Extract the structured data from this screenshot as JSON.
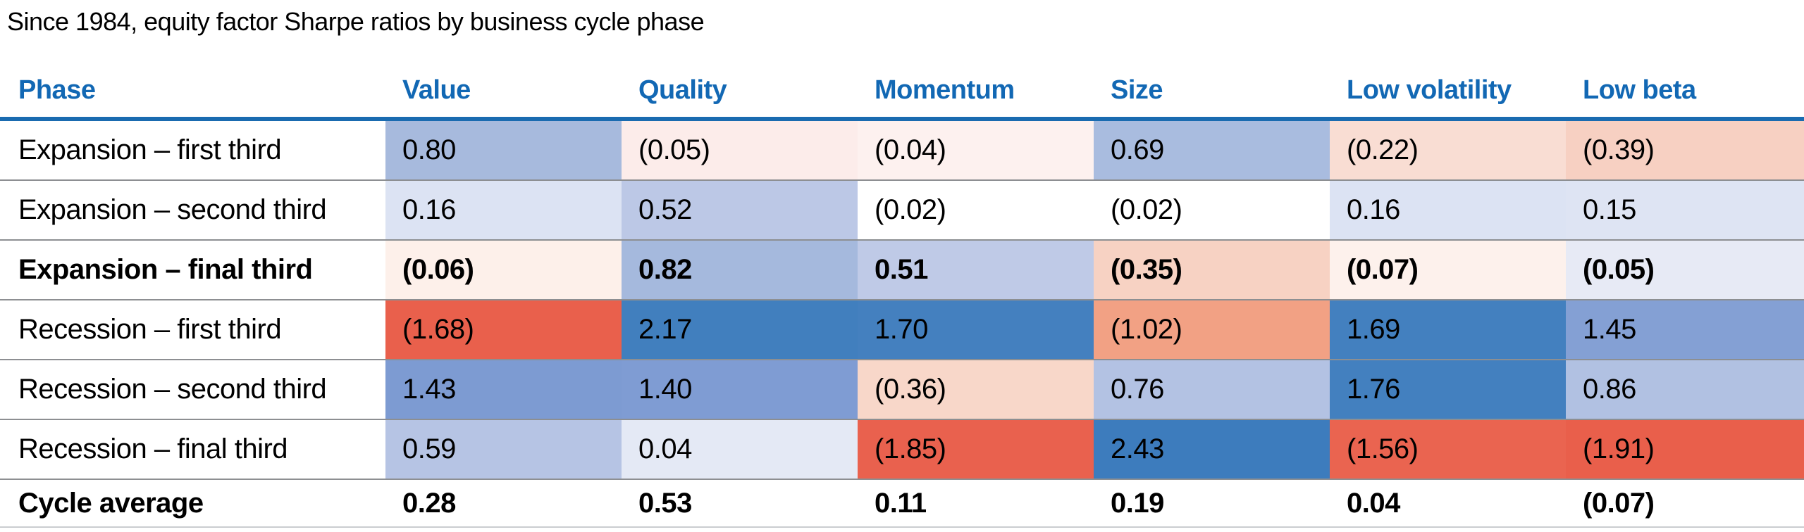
{
  "title": "Since 1984, equity factor Sharpe ratios by business cycle phase",
  "colors": {
    "header_text_blue": "#1268b4",
    "header_rule_blue": "#1a6bb0",
    "row_separator_gray": "#8d8f92",
    "bottom_border_gray": "#cbcdd0",
    "background": "#ffffff",
    "text": "#000000",
    "heatmap_strong_blue": "#3d7cbd",
    "heatmap_strong_red": "#e95f4b"
  },
  "table": {
    "columns": [
      "Phase",
      "Value",
      "Quality",
      "Momentum",
      "Size",
      "Low volatility",
      "Low beta"
    ],
    "rows": [
      {
        "phase": "Expansion – first third",
        "bold": false,
        "cells": [
          {
            "text": "0.80",
            "bg": "#a7badd"
          },
          {
            "text": "(0.05)",
            "bg": "#fcecea"
          },
          {
            "text": "(0.04)",
            "bg": "#fdf1ef"
          },
          {
            "text": "0.69",
            "bg": "#a9bcdf"
          },
          {
            "text": "(0.22)",
            "bg": "#f9ddd3"
          },
          {
            "text": "(0.39)",
            "bg": "#f7d0c2"
          }
        ]
      },
      {
        "phase": "Expansion – second third",
        "bold": false,
        "cells": [
          {
            "text": "0.16",
            "bg": "#dce3f3"
          },
          {
            "text": "0.52",
            "bg": "#bcc8e6"
          },
          {
            "text": "(0.02)",
            "bg": "#ffffff"
          },
          {
            "text": "(0.02)",
            "bg": "#ffffff"
          },
          {
            "text": "0.16",
            "bg": "#dce3f3"
          },
          {
            "text": "0.15",
            "bg": "#dee4f3"
          }
        ]
      },
      {
        "phase": "Expansion – final third",
        "bold": true,
        "cells": [
          {
            "text": "(0.06)",
            "bg": "#fdf0ea"
          },
          {
            "text": "0.82",
            "bg": "#a5b9dd"
          },
          {
            "text": "0.51",
            "bg": "#bfcae7"
          },
          {
            "text": "(0.35)",
            "bg": "#f7d2c3"
          },
          {
            "text": "(0.07)",
            "bg": "#fdf1ec"
          },
          {
            "text": "(0.05)",
            "bg": "#e7eaf5"
          }
        ]
      },
      {
        "phase": "Recession – first third",
        "bold": false,
        "cells": [
          {
            "text": "(1.68)",
            "bg": "#e9604c"
          },
          {
            "text": "2.17",
            "bg": "#417fbe"
          },
          {
            "text": "1.70",
            "bg": "#4480bf"
          },
          {
            "text": "(1.02)",
            "bg": "#f2a184"
          },
          {
            "text": "1.69",
            "bg": "#4380bf"
          },
          {
            "text": "1.45",
            "bg": "#84a0d4"
          }
        ]
      },
      {
        "phase": "Recession – second third",
        "bold": false,
        "cells": [
          {
            "text": "1.43",
            "bg": "#7d9bd2"
          },
          {
            "text": "1.40",
            "bg": "#7f9cd3"
          },
          {
            "text": "(0.36)",
            "bg": "#f8d7c9"
          },
          {
            "text": "0.76",
            "bg": "#b3c2e3"
          },
          {
            "text": "1.76",
            "bg": "#4380bf"
          },
          {
            "text": "0.86",
            "bg": "#b1c1e2"
          }
        ]
      },
      {
        "phase": "Recession – final third",
        "bold": false,
        "cells": [
          {
            "text": "0.59",
            "bg": "#b6c4e4"
          },
          {
            "text": "0.04",
            "bg": "#e4e9f5"
          },
          {
            "text": "(1.85)",
            "bg": "#e9614e"
          },
          {
            "text": "2.43",
            "bg": "#3d7cbd"
          },
          {
            "text": "(1.56)",
            "bg": "#ea6450"
          },
          {
            "text": "(1.91)",
            "bg": "#e95f4b"
          }
        ]
      },
      {
        "phase": "Cycle average",
        "bold": true,
        "cells": [
          {
            "text": "0.28",
            "bg": ""
          },
          {
            "text": "0.53",
            "bg": ""
          },
          {
            "text": "0.11",
            "bg": ""
          },
          {
            "text": "0.19",
            "bg": ""
          },
          {
            "text": "0.04",
            "bg": ""
          },
          {
            "text": "(0.07)",
            "bg": ""
          }
        ]
      }
    ]
  },
  "chart_data": {
    "type": "heatmap",
    "title": "Since 1984, equity factor Sharpe ratios by business cycle phase",
    "columns": [
      "Value",
      "Quality",
      "Momentum",
      "Size",
      "Low volatility",
      "Low beta"
    ],
    "rows": [
      "Expansion – first third",
      "Expansion – second third",
      "Expansion – final third",
      "Recession – first third",
      "Recession – second third",
      "Recession – final third",
      "Cycle average"
    ],
    "values": [
      [
        0.8,
        -0.05,
        -0.04,
        0.69,
        -0.22,
        -0.39
      ],
      [
        0.16,
        0.52,
        -0.02,
        -0.02,
        0.16,
        0.15
      ],
      [
        -0.06,
        0.82,
        0.51,
        -0.35,
        -0.07,
        -0.05
      ],
      [
        -1.68,
        2.17,
        1.7,
        -1.02,
        1.69,
        1.45
      ],
      [
        1.43,
        1.4,
        -0.36,
        0.76,
        1.76,
        0.86
      ],
      [
        0.59,
        0.04,
        -1.85,
        2.43,
        -1.56,
        -1.91
      ],
      [
        0.28,
        0.53,
        0.11,
        0.19,
        0.04,
        -0.07
      ]
    ],
    "value_range": [
      -1.91,
      2.43
    ],
    "negative_format": "parentheses",
    "color_scale": {
      "negative": "#e95f4b",
      "mid": "#ffffff",
      "positive": "#3d7cbd"
    },
    "unfilled_rows": [
      "Cycle average"
    ],
    "bold_rows": [
      "Expansion – final third",
      "Cycle average"
    ]
  }
}
